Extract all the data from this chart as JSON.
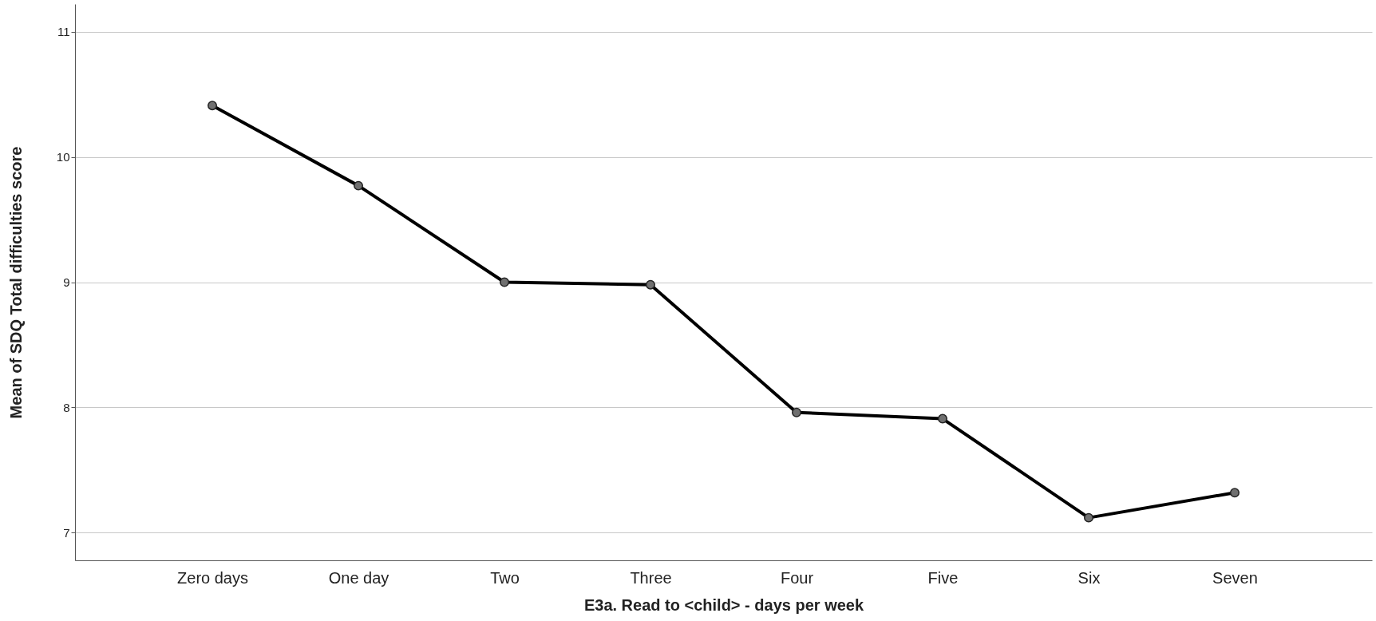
{
  "chart_data": {
    "type": "line",
    "xlabel": "E3a. Read to <child> - days per week",
    "ylabel": "Mean of SDQ Total difficulties score",
    "categories": [
      "Zero days",
      "One day",
      "Two",
      "Three",
      "Four",
      "Five",
      "Six",
      "Seven"
    ],
    "series": [
      {
        "color": "#000000",
        "values": [
          10.41,
          9.77,
          9.0,
          8.98,
          7.96,
          7.91,
          7.12,
          7.32
        ]
      }
    ],
    "ylim": [
      6.78,
      11.22
    ],
    "yticks": [
      7,
      8,
      9,
      10,
      11
    ],
    "grid": "y",
    "marker": "circle",
    "line_style": "solid",
    "legend": false
  }
}
